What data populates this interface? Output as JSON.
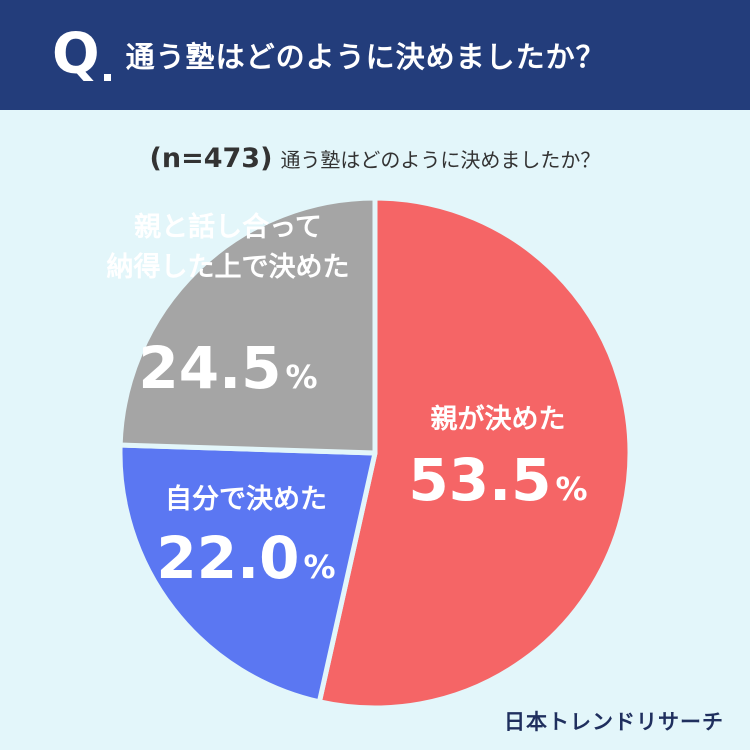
{
  "header": {
    "q_mark": "Q",
    "title": "通う塾はどのように決めましたか？"
  },
  "subtitle": {
    "n": "(n=473)",
    "question": "通う塾はどのように決めましたか？"
  },
  "chart_data": {
    "type": "pie",
    "title": "通う塾はどのように決めましたか？",
    "n": 473,
    "slices": [
      {
        "name": "親が決めた",
        "lines": [
          "親が決めた"
        ],
        "value": 53.5,
        "color": "#f56566"
      },
      {
        "name": "自分で決めた",
        "lines": [
          "自分で決めた"
        ],
        "value": 22.0,
        "color": "#5b77f2"
      },
      {
        "name": "親と話し合って納得した上で決めた",
        "lines": [
          "親と話し合って",
          "納得した上で決めた"
        ],
        "value": 24.5,
        "color": "#a5a5a5"
      }
    ],
    "value_format": {
      "decimals": 1,
      "suffix": "%"
    }
  },
  "brand": {
    "text": "日本トレンドリサーチ"
  }
}
